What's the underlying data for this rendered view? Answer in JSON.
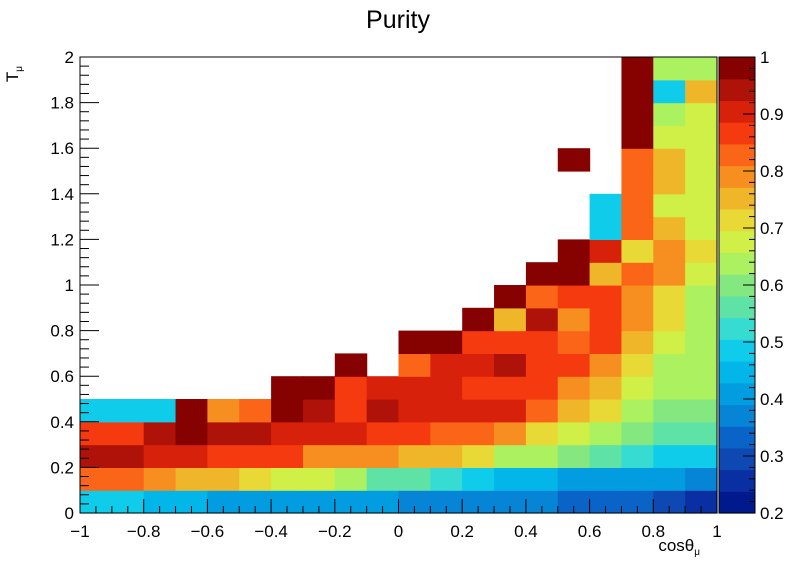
{
  "chart_data": {
    "type": "heatmap",
    "title": "Purity",
    "xlabel": {
      "base": "cosθ",
      "sub": "μ"
    },
    "ylabel": {
      "base": "T",
      "sub": "μ"
    },
    "xlim": [
      -1,
      1
    ],
    "ylim": [
      0,
      2
    ],
    "x_edges": [
      -1.0,
      -0.8,
      -0.7,
      -0.6,
      -0.5,
      -0.4,
      -0.3,
      -0.2,
      -0.1,
      0.0,
      0.1,
      0.2,
      0.3,
      0.4,
      0.5,
      0.6,
      0.7,
      0.8,
      0.9,
      1.0
    ],
    "y_edges": [
      0.0,
      0.1,
      0.2,
      0.3,
      0.4,
      0.5,
      0.6,
      0.7,
      0.8,
      0.9,
      1.0,
      1.1,
      1.2,
      1.3,
      1.4,
      1.5,
      1.6,
      1.7,
      1.8,
      1.9,
      2.0
    ],
    "z_rows_from_bottom": [
      [
        0.48,
        0.44,
        0.44,
        0.42,
        0.42,
        0.42,
        0.42,
        0.4,
        0.4,
        0.38,
        0.38,
        0.36,
        0.36,
        0.36,
        0.34,
        0.34,
        0.32,
        0.3,
        0.26
      ],
      [
        0.84,
        0.8,
        0.74,
        0.74,
        0.7,
        0.68,
        0.66,
        0.62,
        0.58,
        0.58,
        0.52,
        0.48,
        0.44,
        0.44,
        0.42,
        0.42,
        0.42,
        0.4,
        0.36
      ],
      [
        0.94,
        0.92,
        0.92,
        0.88,
        0.88,
        0.86,
        0.8,
        0.8,
        0.78,
        0.76,
        0.74,
        0.7,
        0.62,
        0.62,
        0.6,
        0.56,
        0.52,
        0.5,
        0.48
      ],
      [
        0.86,
        0.96,
        1.0,
        0.96,
        0.96,
        0.92,
        0.92,
        0.92,
        0.88,
        0.88,
        0.84,
        0.84,
        0.8,
        0.7,
        0.68,
        0.64,
        0.6,
        0.56,
        0.56
      ],
      [
        0.5,
        0.5,
        0.98,
        0.78,
        0.84,
        0.98,
        0.96,
        0.86,
        0.96,
        0.92,
        0.92,
        0.9,
        0.9,
        0.84,
        0.76,
        0.7,
        0.62,
        0.6,
        0.6
      ],
      [
        null,
        null,
        null,
        null,
        null,
        1.0,
        1.0,
        0.86,
        0.92,
        0.92,
        0.92,
        0.88,
        0.88,
        0.88,
        0.8,
        0.76,
        0.66,
        0.62,
        0.62
      ],
      [
        null,
        null,
        null,
        null,
        null,
        null,
        null,
        1.0,
        null,
        0.84,
        0.92,
        0.92,
        0.96,
        0.88,
        0.88,
        0.8,
        0.72,
        0.64,
        0.62
      ],
      [
        null,
        null,
        null,
        null,
        null,
        null,
        null,
        null,
        null,
        1.0,
        1.0,
        0.88,
        0.88,
        0.88,
        0.84,
        0.86,
        0.76,
        0.68,
        0.64
      ],
      [
        null,
        null,
        null,
        null,
        null,
        null,
        null,
        null,
        null,
        null,
        null,
        1.0,
        0.74,
        0.94,
        0.8,
        0.88,
        0.8,
        0.72,
        0.64
      ],
      [
        null,
        null,
        null,
        null,
        null,
        null,
        null,
        null,
        null,
        null,
        null,
        null,
        1.0,
        0.82,
        0.88,
        0.88,
        0.8,
        0.72,
        0.64
      ],
      [
        null,
        null,
        null,
        null,
        null,
        null,
        null,
        null,
        null,
        null,
        null,
        null,
        null,
        1.0,
        1.0,
        0.74,
        0.84,
        0.78,
        0.68
      ],
      [
        null,
        null,
        null,
        null,
        null,
        null,
        null,
        null,
        null,
        null,
        null,
        null,
        null,
        null,
        1.0,
        0.92,
        0.7,
        0.78,
        0.7
      ],
      [
        null,
        null,
        null,
        null,
        null,
        null,
        null,
        null,
        null,
        null,
        null,
        null,
        null,
        null,
        null,
        0.5,
        0.84,
        0.76,
        0.68
      ],
      [
        null,
        null,
        null,
        null,
        null,
        null,
        null,
        null,
        null,
        null,
        null,
        null,
        null,
        null,
        null,
        0.5,
        0.84,
        0.68,
        0.66
      ],
      [
        null,
        null,
        null,
        null,
        null,
        null,
        null,
        null,
        null,
        null,
        null,
        null,
        null,
        null,
        null,
        null,
        0.84,
        0.74,
        0.66
      ],
      [
        null,
        null,
        null,
        null,
        null,
        null,
        null,
        null,
        null,
        null,
        null,
        null,
        null,
        null,
        1.0,
        null,
        0.84,
        0.76,
        0.66
      ],
      [
        null,
        null,
        null,
        null,
        null,
        null,
        null,
        null,
        null,
        null,
        null,
        null,
        null,
        null,
        null,
        null,
        1.0,
        0.68,
        0.68
      ],
      [
        null,
        null,
        null,
        null,
        null,
        null,
        null,
        null,
        null,
        null,
        null,
        null,
        null,
        null,
        null,
        null,
        1.0,
        0.62,
        0.68
      ],
      [
        null,
        null,
        null,
        null,
        null,
        null,
        null,
        null,
        null,
        null,
        null,
        null,
        null,
        null,
        null,
        null,
        1.0,
        0.5,
        0.76
      ],
      [
        null,
        null,
        null,
        null,
        null,
        null,
        null,
        null,
        null,
        null,
        null,
        null,
        null,
        null,
        null,
        null,
        1.0,
        0.62,
        0.64
      ]
    ],
    "x_ticks": [
      -1,
      -0.8,
      -0.6,
      -0.4,
      -0.2,
      0,
      0.2,
      0.4,
      0.6,
      0.8,
      1
    ],
    "x_tick_labels": [
      "−1",
      "−0.8",
      "−0.6",
      "−0.4",
      "−0.2",
      "0",
      "0.2",
      "0.4",
      "0.6",
      "0.8",
      "1"
    ],
    "y_ticks": [
      0,
      0.2,
      0.4,
      0.6,
      0.8,
      1,
      1.2,
      1.4,
      1.6,
      1.8,
      2
    ],
    "y_tick_labels": [
      "0",
      "0.2",
      "0.4",
      "0.6",
      "0.8",
      "1",
      "1.2",
      "1.4",
      "1.6",
      "1.8",
      "2"
    ],
    "colorbar": {
      "zlim": [
        0.2,
        1.0
      ],
      "ticks": [
        0.2,
        0.3,
        0.4,
        0.5,
        0.6,
        0.7,
        0.8,
        0.9,
        1.0
      ],
      "tick_labels": [
        "0.2",
        "0.3",
        "0.4",
        "0.5",
        "0.6",
        "0.7",
        "0.8",
        "0.9",
        "1"
      ],
      "palette": [
        "#00198c",
        "#0a2fa2",
        "#0d48b3",
        "#0a63c6",
        "#0684d6",
        "#029de0",
        "#02b6ea",
        "#0fcceb",
        "#36dcd2",
        "#5fe2a6",
        "#85e77f",
        "#abf160",
        "#d0ef47",
        "#e8d937",
        "#f0b62a",
        "#f68f20",
        "#fa6518",
        "#f63a10",
        "#d8210b",
        "#af1208",
        "#860200"
      ]
    },
    "grid": false,
    "legend": "none"
  }
}
